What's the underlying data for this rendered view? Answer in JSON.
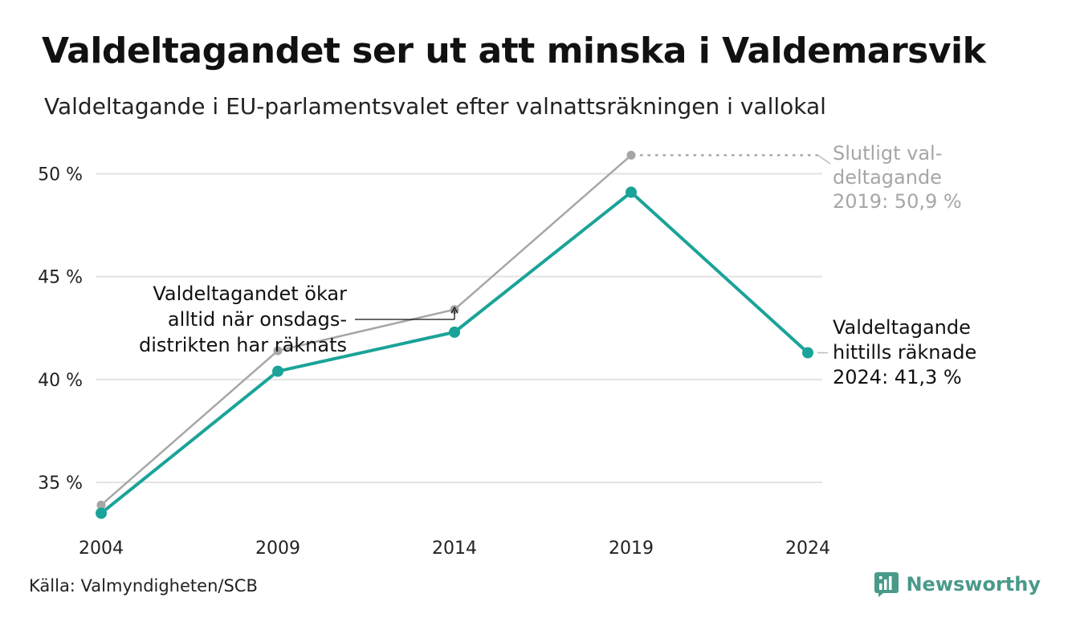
{
  "header": {
    "title": "Valdeltagandet ser ut att minska i Valdemarsvik",
    "subtitle": "Valdeltagande i EU-parlamentsvalet efter valnattsräkningen i vallokal"
  },
  "footer": {
    "source": "Källa: Valmyndigheten/SCB",
    "brand": "Newsworthy",
    "brand_icon": "newsworthy-logo-icon"
  },
  "chart_data": {
    "type": "line",
    "x": [
      2004,
      2009,
      2014,
      2019,
      2024
    ],
    "x_tick_labels": [
      "2004",
      "2009",
      "2014",
      "2019",
      "2024"
    ],
    "ylim": [
      32.7,
      51.5
    ],
    "y_ticks": [
      35,
      40,
      45,
      50
    ],
    "y_tick_labels": [
      "35 %",
      "40 %",
      "45 %",
      "50 %"
    ],
    "grid": true,
    "series": [
      {
        "key": "slutligt",
        "color": "#a6a6a6",
        "x": [
          2004,
          2009,
          2014,
          2019
        ],
        "values": [
          33.9,
          41.4,
          43.4,
          50.9
        ]
      },
      {
        "key": "valnatt",
        "color": "#1aa399",
        "x": [
          2004,
          2009,
          2014,
          2019,
          2024
        ],
        "values": [
          33.5,
          40.4,
          42.3,
          49.1,
          41.3
        ]
      }
    ],
    "annotations": {
      "final_2019": [
        "Slutligt val-",
        "deltagande",
        "2019: 50,9 %"
      ],
      "current_2024": [
        "Valdeltagande",
        "hittills räknade",
        "2024: 41,3 %"
      ],
      "note": [
        "Valdeltagandet ökar",
        "alltid när onsdags-",
        "distrikten har räknats"
      ]
    },
    "annotation_colors": {
      "final_2019": "#a6a6a6",
      "current_2024": "#111111",
      "note": "#111111"
    }
  }
}
